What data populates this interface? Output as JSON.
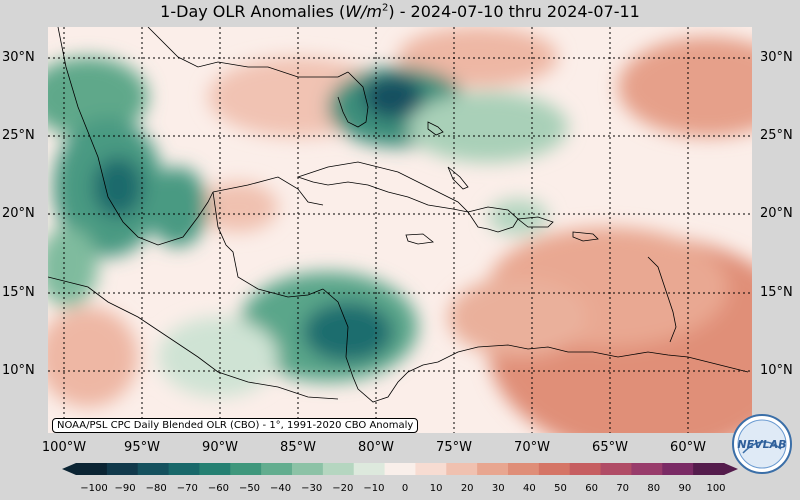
{
  "title": {
    "prefix": "1-Day OLR Anomalies (",
    "unit_base": "W/m",
    "unit_exp": "2",
    "suffix": ") - 2024-07-10 thru 2024-07-11"
  },
  "lat_labels": [
    "30°N",
    "25°N",
    "20°N",
    "15°N",
    "10°N"
  ],
  "lon_labels": [
    "100°W",
    "95°W",
    "90°W",
    "85°W",
    "80°W",
    "75°W",
    "70°W",
    "65°W",
    "60°W"
  ],
  "credit": "NOAA/PSL CPC Daily Blended OLR (CBO) - 1°, 1991-2020 CBO Anomaly",
  "logo_text": "NEW LAB",
  "colorbar": {
    "ticks": [
      "−100",
      "−90",
      "−80",
      "−70",
      "−60",
      "−50",
      "−40",
      "−30",
      "−20",
      "−10",
      "0",
      "10",
      "20",
      "30",
      "40",
      "50",
      "60",
      "70",
      "80",
      "90",
      "100"
    ],
    "colors": [
      "#0b2433",
      "#11394b",
      "#15515e",
      "#19686a",
      "#258072",
      "#3f977c",
      "#63ad8f",
      "#8cc2a6",
      "#b5d6c0",
      "#dde9dd",
      "#f9efea",
      "#f7dcd2",
      "#f0c1b0",
      "#e8a690",
      "#df8e78",
      "#d57566",
      "#c65e61",
      "#b04c66",
      "#983c6b",
      "#7a2b65",
      "#541c4c"
    ]
  }
}
